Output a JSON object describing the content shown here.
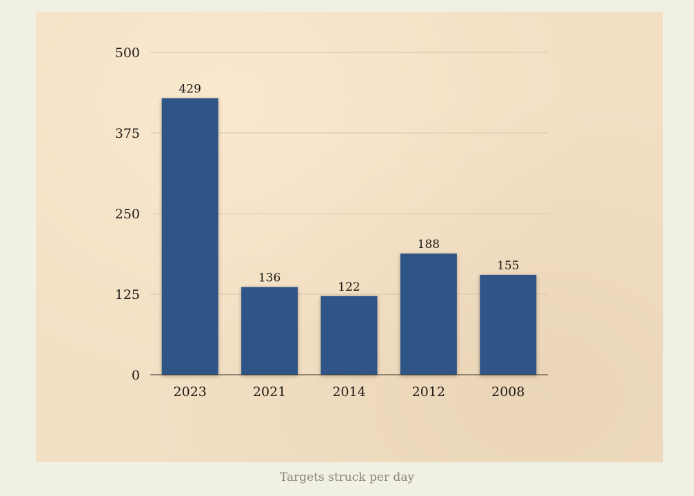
{
  "caption": "Targets struck per day",
  "colors": {
    "bar": "#2f5586",
    "paper": "#f2dfc4",
    "background": "#f0f0e4",
    "text": "#1e1a14"
  },
  "chart_data": {
    "type": "bar",
    "title": "",
    "xlabel": "",
    "ylabel": "",
    "categories": [
      "2023",
      "2021",
      "2014",
      "2012",
      "2008"
    ],
    "values": [
      429,
      136,
      122,
      188,
      155
    ],
    "ylim": [
      0,
      500
    ],
    "yticks": [
      0,
      125,
      250,
      375,
      500
    ],
    "grid": true,
    "data_labels": true
  }
}
